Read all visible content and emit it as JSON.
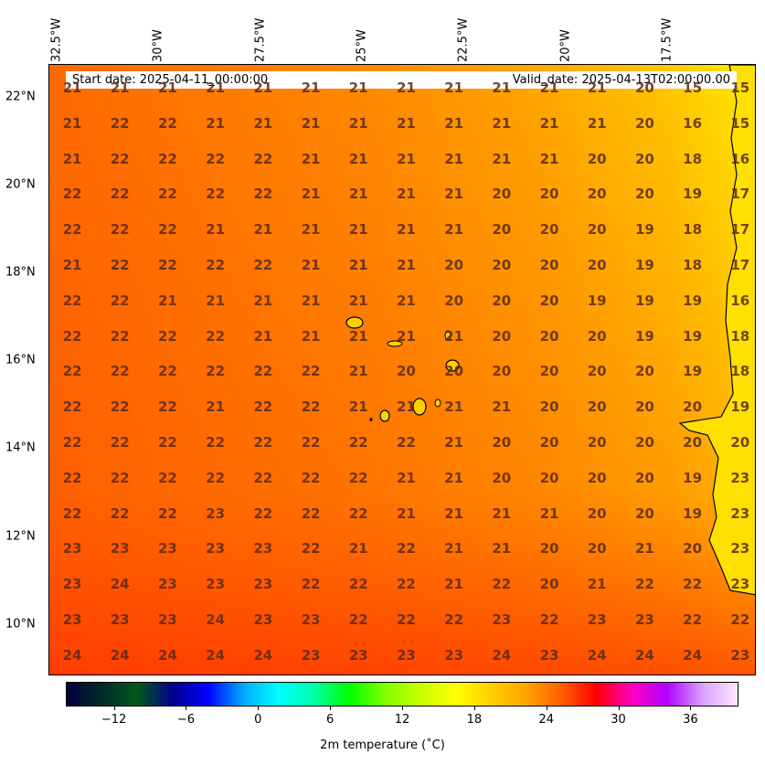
{
  "map": {
    "start_date": "Start date: 2025-04-11_00:00:00",
    "valid_date": "Valid_date: 2025-04-13T02:00:00.00",
    "lon_labels": [
      "32.5°W",
      "30°W",
      "27.5°W",
      "25°W",
      "22.5°W",
      "20°W",
      "17.5°W"
    ],
    "lat_labels": [
      "22°N",
      "20°N",
      "18°N",
      "16°N",
      "14°N",
      "12°N",
      "10°N"
    ],
    "grid_values": [
      [
        21,
        21,
        21,
        21,
        21,
        21,
        21,
        21,
        21,
        21,
        21,
        21,
        20,
        15,
        15
      ],
      [
        21,
        22,
        22,
        21,
        21,
        21,
        21,
        21,
        21,
        21,
        21,
        21,
        20,
        16,
        15
      ],
      [
        21,
        22,
        22,
        22,
        22,
        21,
        21,
        21,
        21,
        21,
        21,
        20,
        20,
        18,
        16
      ],
      [
        22,
        22,
        22,
        22,
        22,
        21,
        21,
        21,
        21,
        20,
        20,
        20,
        20,
        19,
        17
      ],
      [
        22,
        22,
        22,
        21,
        21,
        21,
        21,
        21,
        21,
        20,
        20,
        20,
        19,
        18,
        17
      ],
      [
        21,
        22,
        22,
        22,
        22,
        21,
        21,
        21,
        20,
        20,
        20,
        20,
        19,
        18,
        17
      ],
      [
        22,
        22,
        21,
        21,
        21,
        21,
        21,
        21,
        20,
        20,
        20,
        19,
        19,
        19,
        16
      ],
      [
        22,
        22,
        22,
        22,
        21,
        21,
        21,
        21,
        21,
        20,
        20,
        20,
        19,
        19,
        18
      ],
      [
        22,
        22,
        22,
        22,
        22,
        22,
        21,
        20,
        20,
        20,
        20,
        20,
        20,
        19,
        18
      ],
      [
        22,
        22,
        22,
        21,
        22,
        22,
        21,
        21,
        21,
        21,
        20,
        20,
        20,
        20,
        19
      ],
      [
        22,
        22,
        22,
        22,
        22,
        22,
        22,
        22,
        21,
        20,
        20,
        20,
        20,
        20,
        20
      ],
      [
        22,
        22,
        22,
        22,
        22,
        22,
        22,
        21,
        21,
        20,
        20,
        20,
        20,
        19,
        23
      ],
      [
        22,
        22,
        22,
        23,
        22,
        22,
        22,
        21,
        21,
        21,
        21,
        20,
        20,
        19,
        23
      ],
      [
        23,
        23,
        23,
        23,
        23,
        22,
        21,
        22,
        21,
        21,
        20,
        20,
        21,
        20,
        23
      ],
      [
        23,
        24,
        23,
        23,
        23,
        22,
        22,
        22,
        21,
        22,
        20,
        21,
        22,
        22,
        23
      ],
      [
        23,
        23,
        23,
        24,
        23,
        23,
        22,
        22,
        22,
        23,
        22,
        23,
        23,
        22,
        22
      ],
      [
        24,
        24,
        24,
        24,
        24,
        23,
        23,
        23,
        23,
        24,
        23,
        24,
        24,
        24,
        23
      ]
    ]
  },
  "colorbar": {
    "title": "2m temperature ($^\\circ$C)",
    "title_display": "2m temperature (˚C)",
    "ticks": [
      -12,
      -6,
      0,
      6,
      12,
      18,
      24,
      30,
      36
    ],
    "range": [
      -16,
      40
    ],
    "colors": [
      "#00003a",
      "#002a2a",
      "#005a1a",
      "#00008a",
      "#0000ff",
      "#00aaff",
      "#00ffff",
      "#00ffaa",
      "#00ff00",
      "#7fff00",
      "#c8ff00",
      "#ffff00",
      "#ffd000",
      "#ffa500",
      "#ff6000",
      "#ff0000",
      "#ff00c0",
      "#b000ff",
      "#d8a0ff",
      "#ffe6ff"
    ]
  }
}
